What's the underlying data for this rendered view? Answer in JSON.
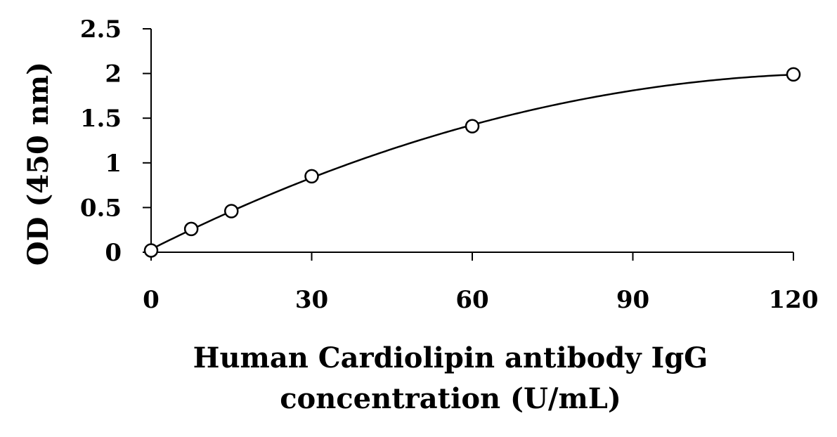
{
  "chart_data": {
    "type": "scatter",
    "title": "",
    "xlabel_lines": [
      "Human Cardiolipin antibody IgG",
      "concentration (U/mL)"
    ],
    "ylabel": "OD (450 nm)",
    "xlim": [
      0,
      120
    ],
    "ylim": [
      0,
      2.5
    ],
    "x_ticks": [
      "0",
      "30",
      "60",
      "90",
      "120"
    ],
    "y_ticks": [
      "0",
      "0.5",
      "1",
      "1.5",
      "2",
      "2.5"
    ],
    "grid": false,
    "legend": "none",
    "series": [
      {
        "x": [
          0,
          7.5,
          15,
          30,
          60,
          120
        ],
        "y": [
          0.02,
          0.26,
          0.46,
          0.85,
          1.41,
          1.99
        ],
        "marker": "open-circle",
        "fit_line": true
      }
    ],
    "colors": {
      "line": "#000000",
      "marker_stroke": "#000000",
      "marker_fill": "#ffffff"
    }
  }
}
